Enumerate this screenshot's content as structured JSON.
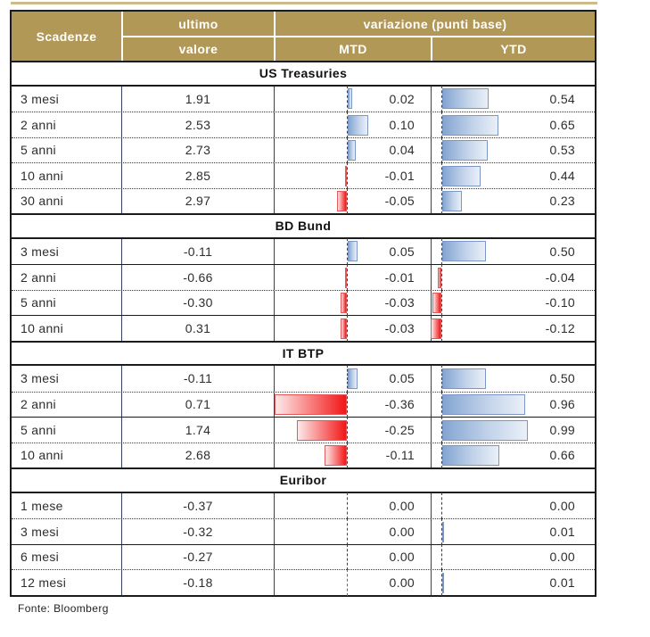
{
  "header": {
    "maturity": "Scadenze",
    "last_line1": "ultimo",
    "last_line2": "valore",
    "variation": "variazione (punti base)",
    "mtd": "MTD",
    "ytd": "YTD"
  },
  "footer": {
    "source": "Fonte: Bloomberg"
  },
  "colors": {
    "header_gold": "#b19857",
    "positive_bar_blue": "#83a5d2",
    "negative_bar_red": "#f21616"
  },
  "chart_data": {
    "type": "table",
    "columns": [
      "Scadenze",
      "ultimo valore",
      "variazione (punti base) MTD",
      "variazione (punti base) YTD"
    ],
    "bar_axis": {
      "mtd_range": [
        -0.36,
        0.36
      ],
      "ytd_range": [
        -0.12,
        0.99
      ],
      "units": "punti base"
    },
    "sections": [
      {
        "title": "US Treasuries",
        "rows": [
          {
            "maturity": "3 mesi",
            "last": "1.91",
            "mtd": 0.02,
            "mtd_label": "0.02",
            "ytd": 0.54,
            "ytd_label": "0.54"
          },
          {
            "maturity": "2 anni",
            "last": "2.53",
            "mtd": 0.1,
            "mtd_label": "0.10",
            "ytd": 0.65,
            "ytd_label": "0.65"
          },
          {
            "maturity": "5 anni",
            "last": "2.73",
            "mtd": 0.04,
            "mtd_label": "0.04",
            "ytd": 0.53,
            "ytd_label": "0.53"
          },
          {
            "maturity": "10 anni",
            "last": "2.85",
            "mtd": -0.01,
            "mtd_label": "-0.01",
            "ytd": 0.44,
            "ytd_label": "0.44"
          },
          {
            "maturity": "30 anni",
            "last": "2.97",
            "mtd": -0.05,
            "mtd_label": "-0.05",
            "ytd": 0.23,
            "ytd_label": "0.23"
          }
        ]
      },
      {
        "title": "BD Bund",
        "rows": [
          {
            "maturity": "3 mesi",
            "last": "-0.11",
            "mtd": 0.05,
            "mtd_label": "0.05",
            "ytd": 0.5,
            "ytd_label": "0.50"
          },
          {
            "maturity": "2 anni",
            "last": "-0.66",
            "mtd": -0.01,
            "mtd_label": "-0.01",
            "ytd": -0.04,
            "ytd_label": "-0.04"
          },
          {
            "maturity": "5 anni",
            "last": "-0.30",
            "mtd": -0.03,
            "mtd_label": "-0.03",
            "ytd": -0.1,
            "ytd_label": "-0.10"
          },
          {
            "maturity": "10 anni",
            "last": "0.31",
            "mtd": -0.03,
            "mtd_label": "-0.03",
            "ytd": -0.12,
            "ytd_label": "-0.12"
          }
        ]
      },
      {
        "title": "IT BTP",
        "rows": [
          {
            "maturity": "3 mesi",
            "last": "-0.11",
            "mtd": 0.05,
            "mtd_label": "0.05",
            "ytd": 0.5,
            "ytd_label": "0.50"
          },
          {
            "maturity": "2 anni",
            "last": "0.71",
            "mtd": -0.36,
            "mtd_label": "-0.36",
            "ytd": 0.96,
            "ytd_label": "0.96"
          },
          {
            "maturity": "5 anni",
            "last": "1.74",
            "mtd": -0.25,
            "mtd_label": "-0.25",
            "ytd": 0.99,
            "ytd_label": "0.99"
          },
          {
            "maturity": "10 anni",
            "last": "2.68",
            "mtd": -0.11,
            "mtd_label": "-0.11",
            "ytd": 0.66,
            "ytd_label": "0.66"
          }
        ]
      },
      {
        "title": "Euribor",
        "rows": [
          {
            "maturity": "1 mese",
            "last": "-0.37",
            "mtd": 0,
            "mtd_label": "0.00",
            "ytd": 0,
            "ytd_label": "0.00",
            "mtd_tick": "red"
          },
          {
            "maturity": "3 mesi",
            "last": "-0.32",
            "mtd": 0,
            "mtd_label": "0.00",
            "ytd": 0.01,
            "ytd_label": "0.01",
            "mtd_tick": "red"
          },
          {
            "maturity": "6 mesi",
            "last": "-0.27",
            "mtd": 0,
            "mtd_label": "0.00",
            "ytd": 0,
            "ytd_label": "0.00"
          },
          {
            "maturity": "12 mesi",
            "last": "-0.18",
            "mtd": 0,
            "mtd_label": "0.00",
            "ytd": 0.01,
            "ytd_label": "0.01",
            "mtd_tick": "blue"
          }
        ]
      }
    ]
  }
}
